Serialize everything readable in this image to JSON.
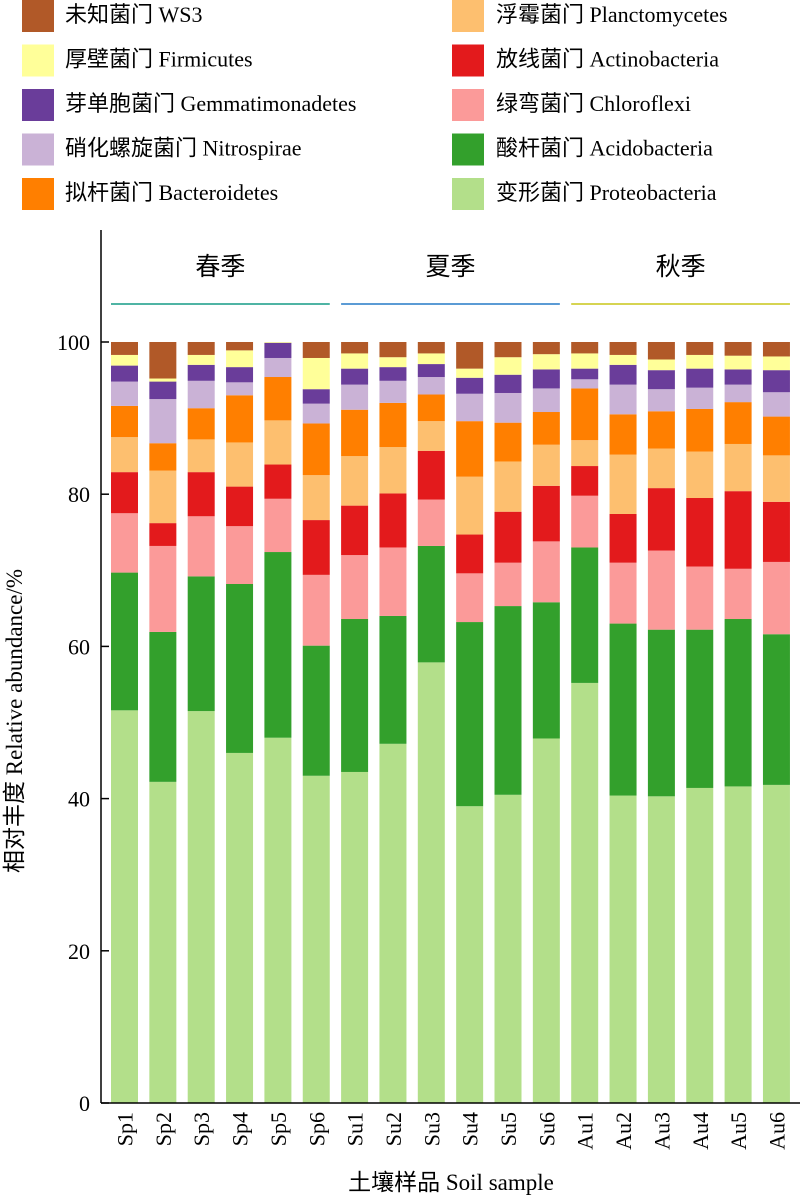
{
  "chart_data": {
    "type": "bar",
    "stacked": true,
    "xlabel": "土壤样品 Soil sample",
    "ylabel": "相对丰度 Relative abundance/%",
    "ylim": [
      0,
      100
    ],
    "yticks": [
      0,
      20,
      40,
      60,
      80,
      100
    ],
    "grid": false,
    "legend_position": "top",
    "categories": [
      "Sp1",
      "Sp2",
      "Sp3",
      "Sp4",
      "Sp5",
      "Sp6",
      "Su1",
      "Su2",
      "Su3",
      "Su4",
      "Su5",
      "Su6",
      "Au1",
      "Au2",
      "Au3",
      "Au4",
      "Au5",
      "Au6"
    ],
    "groups": [
      {
        "label": "春季",
        "color": "#4fb4a4",
        "start": 0,
        "end": 5
      },
      {
        "label": "夏季",
        "color": "#5b9bd5",
        "start": 6,
        "end": 11
      },
      {
        "label": "秋季",
        "color": "#d6d452",
        "start": 12,
        "end": 17
      }
    ],
    "series": [
      {
        "name": "变形菌门  Proteobacteria",
        "color": "#b3df8a",
        "values": [
          51.6,
          42.2,
          51.5,
          46.0,
          48.0,
          43.0,
          43.5,
          47.2,
          57.9,
          39.0,
          40.5,
          47.9,
          55.2,
          40.4,
          40.3,
          41.4,
          41.6,
          41.8
        ]
      },
      {
        "name": "酸杆菌门 Acidobacteria",
        "color": "#33a02c",
        "values": [
          18.1,
          19.7,
          17.7,
          22.2,
          24.4,
          17.1,
          20.1,
          16.8,
          15.3,
          24.2,
          24.8,
          17.9,
          17.8,
          22.6,
          21.9,
          20.8,
          22.0,
          19.8
        ]
      },
      {
        "name": "绿弯菌门 Chloroflexi",
        "color": "#fb9a99",
        "values": [
          7.8,
          11.3,
          7.9,
          7.6,
          7.0,
          9.3,
          8.4,
          9.0,
          6.1,
          6.4,
          5.7,
          8.0,
          6.8,
          8.0,
          10.4,
          8.3,
          6.6,
          9.5
        ]
      },
      {
        "name": "放线菌门 Actinobacteria",
        "color": "#e31a1c",
        "values": [
          5.4,
          3.0,
          5.8,
          5.2,
          4.5,
          7.2,
          6.5,
          7.1,
          6.4,
          5.1,
          6.7,
          7.3,
          3.9,
          6.4,
          8.2,
          9.0,
          10.2,
          7.9
        ]
      },
      {
        "name": "浮霉菌门 Planctomycetes",
        "color": "#fdbf6f",
        "values": [
          4.6,
          6.9,
          4.3,
          5.8,
          5.8,
          5.9,
          6.5,
          6.1,
          3.9,
          7.6,
          6.6,
          5.4,
          3.4,
          7.8,
          5.2,
          6.1,
          6.2,
          6.1
        ]
      },
      {
        "name": "拟杆菌门 Bacteroidetes",
        "color": "#ff7f00",
        "values": [
          4.1,
          3.6,
          4.1,
          6.2,
          5.7,
          6.8,
          6.1,
          5.8,
          3.5,
          7.3,
          5.1,
          4.3,
          6.8,
          5.3,
          4.9,
          5.6,
          5.5,
          5.1
        ]
      },
      {
        "name": "硝化螺旋菌门 Nitrospirae",
        "color": "#cab2d6",
        "values": [
          3.2,
          5.8,
          3.6,
          1.7,
          2.5,
          2.6,
          3.3,
          2.9,
          2.3,
          3.6,
          3.9,
          3.1,
          1.2,
          3.9,
          2.9,
          2.8,
          2.3,
          3.2
        ]
      },
      {
        "name": "芽单胞菌门 Gemmatimonadetes",
        "color": "#6a3d9a",
        "values": [
          2.1,
          2.3,
          2.1,
          2.0,
          2.0,
          1.9,
          2.1,
          1.8,
          1.7,
          2.1,
          2.4,
          2.5,
          1.4,
          2.6,
          2.5,
          2.5,
          2.0,
          2.9
        ]
      },
      {
        "name": "厚壁菌门 Firmicutes",
        "color": "#ffff99",
        "values": [
          1.4,
          0.4,
          1.3,
          2.2,
          1.4,
          4.1,
          2.0,
          1.3,
          1.4,
          1.2,
          2.3,
          2.0,
          2.0,
          1.3,
          1.4,
          1.8,
          1.8,
          1.8
        ]
      },
      {
        "name": "未知菌门 WS3",
        "color": "#b15928",
        "values": [
          1.7,
          4.8,
          1.7,
          1.6,
          0.4,
          2.4,
          1.5,
          2.0,
          1.5,
          3.5,
          2.0,
          1.6,
          1.5,
          1.7,
          2.3,
          1.7,
          1.8,
          1.9
        ]
      }
    ],
    "legend": {
      "left": [
        "未知菌门 WS3",
        "厚壁菌门 Firmicutes",
        "芽单胞菌门 Gemmatimonadetes",
        "硝化螺旋菌门 Nitrospirae",
        "拟杆菌门 Bacteroidetes"
      ],
      "right": [
        "浮霉菌门 Planctomycetes",
        "放线菌门 Actinobacteria",
        "绿弯菌门 Chloroflexi",
        "酸杆菌门 Acidobacteria",
        "变形菌门  Proteobacteria"
      ]
    }
  }
}
